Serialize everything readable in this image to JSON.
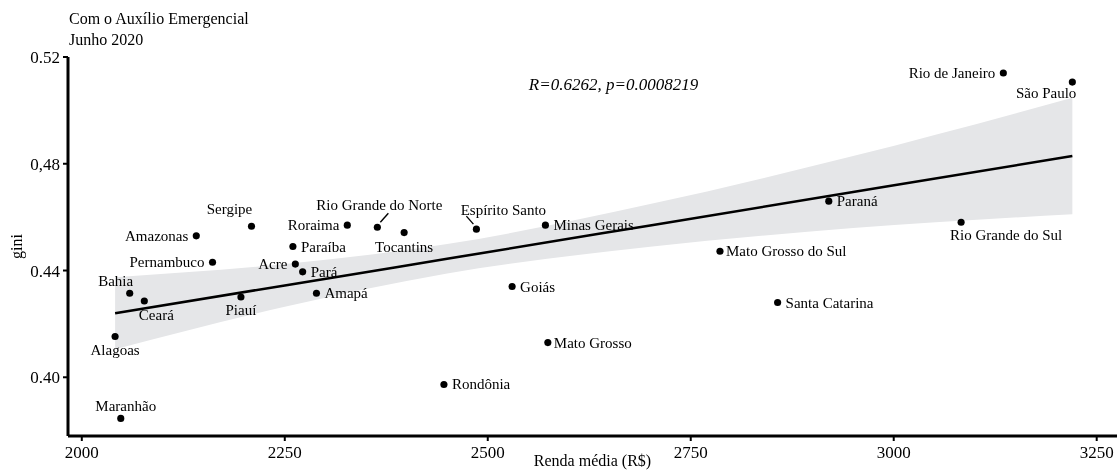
{
  "chart_data": {
    "type": "scatter",
    "title": "Com o Auxílio Emergencial",
    "subtitle": "Junho 2020",
    "xlabel": "Renda média (R$)",
    "ylabel": "gini",
    "xlim": [
      1983,
      3275
    ],
    "ylim": [
      0.378,
      0.52
    ],
    "xticks": [
      2000,
      2250,
      2500,
      2750,
      3000,
      3250
    ],
    "yticks": [
      {
        "value": 0.52,
        "label": "0.52"
      },
      {
        "value": 0.48,
        "label": "0,48"
      },
      {
        "value": 0.44,
        "label": "0.44"
      },
      {
        "value": 0.4,
        "label": "0.40"
      }
    ],
    "grid": false,
    "marker": "circle",
    "series": [
      {
        "type": "line",
        "marker": "none",
        "color": "#000000",
        "x": [
          2041,
          2250,
          2450,
          2700,
          2950,
          3220
        ],
        "values": [
          0.424,
          0.4344,
          0.4444,
          0.4569,
          0.4694,
          0.4829
        ],
        "lower": [
          0.4105,
          0.4264,
          0.4389,
          0.4489,
          0.4559,
          0.4611
        ],
        "upper": [
          0.4375,
          0.4424,
          0.4499,
          0.4649,
          0.4829,
          0.5047
        ]
      },
      {
        "color": "#000000",
        "x": [
          2141,
          2209,
          2327,
          2364,
          2397,
          2486,
          2571,
          3135,
          3220,
          2920,
          3083,
          2161,
          2260,
          2263,
          2272,
          2059,
          2077,
          2196,
          2289,
          2041,
          2048,
          2530,
          2574,
          2446,
          2786,
          2857
        ],
        "values": [
          0.453,
          0.4566,
          0.457,
          0.4562,
          0.4542,
          0.4555,
          0.457,
          0.514,
          0.5106,
          0.466,
          0.4581,
          0.4431,
          0.449,
          0.4424,
          0.4395,
          0.4315,
          0.4286,
          0.4301,
          0.4315,
          0.4153,
          0.3846,
          0.434,
          0.413,
          0.3973,
          0.4472,
          0.428
        ]
      }
    ],
    "annotations": [
      "R=0.6262, p=0.0008219",
      {
        "text": "Amazonas",
        "x": 2141,
        "y": 0.453
      },
      {
        "text": "Sergipe",
        "x": 2209,
        "y": 0.4566
      },
      {
        "text": "Roraima",
        "x": 2327,
        "y": 0.457
      },
      {
        "text": "Rio Grande do Norte",
        "x": 2364,
        "y": 0.4562
      },
      {
        "text": "Tocantins",
        "x": 2397,
        "y": 0.4542
      },
      {
        "text": "Espírito Santo",
        "x": 2486,
        "y": 0.4555
      },
      {
        "text": "Minas Gerais",
        "x": 2571,
        "y": 0.457
      },
      {
        "text": "Rio de Janeiro",
        "x": 3135,
        "y": 0.514
      },
      {
        "text": "São Paulo",
        "x": 3220,
        "y": 0.5106
      },
      {
        "text": "Paraná",
        "x": 2920,
        "y": 0.466
      },
      {
        "text": "Rio Grande do Sul",
        "x": 3083,
        "y": 0.4581
      },
      {
        "text": "Pernambuco",
        "x": 2161,
        "y": 0.4431
      },
      {
        "text": "Paraíba",
        "x": 2260,
        "y": 0.449
      },
      {
        "text": "Acre",
        "x": 2263,
        "y": 0.4424
      },
      {
        "text": "Pará",
        "x": 2272,
        "y": 0.4395
      },
      {
        "text": "Bahia",
        "x": 2059,
        "y": 0.4315
      },
      {
        "text": "Ceará",
        "x": 2077,
        "y": 0.4286
      },
      {
        "text": "Piauí",
        "x": 2196,
        "y": 0.4301
      },
      {
        "text": "Amapá",
        "x": 2289,
        "y": 0.4315
      },
      {
        "text": "Alagoas",
        "x": 2041,
        "y": 0.4153
      },
      {
        "text": "Maranhão",
        "x": 2048,
        "y": 0.3846
      },
      {
        "text": "Goiás",
        "x": 2530,
        "y": 0.434
      },
      {
        "text": "Mato Grosso",
        "x": 2574,
        "y": 0.413
      },
      {
        "text": "Rondônia",
        "x": 2446,
        "y": 0.3973
      },
      {
        "text": "Mato Grosso do Sul",
        "x": 2786,
        "y": 0.4472
      },
      {
        "text": "Santa Catarina",
        "x": 2857,
        "y": 0.428
      }
    ]
  }
}
